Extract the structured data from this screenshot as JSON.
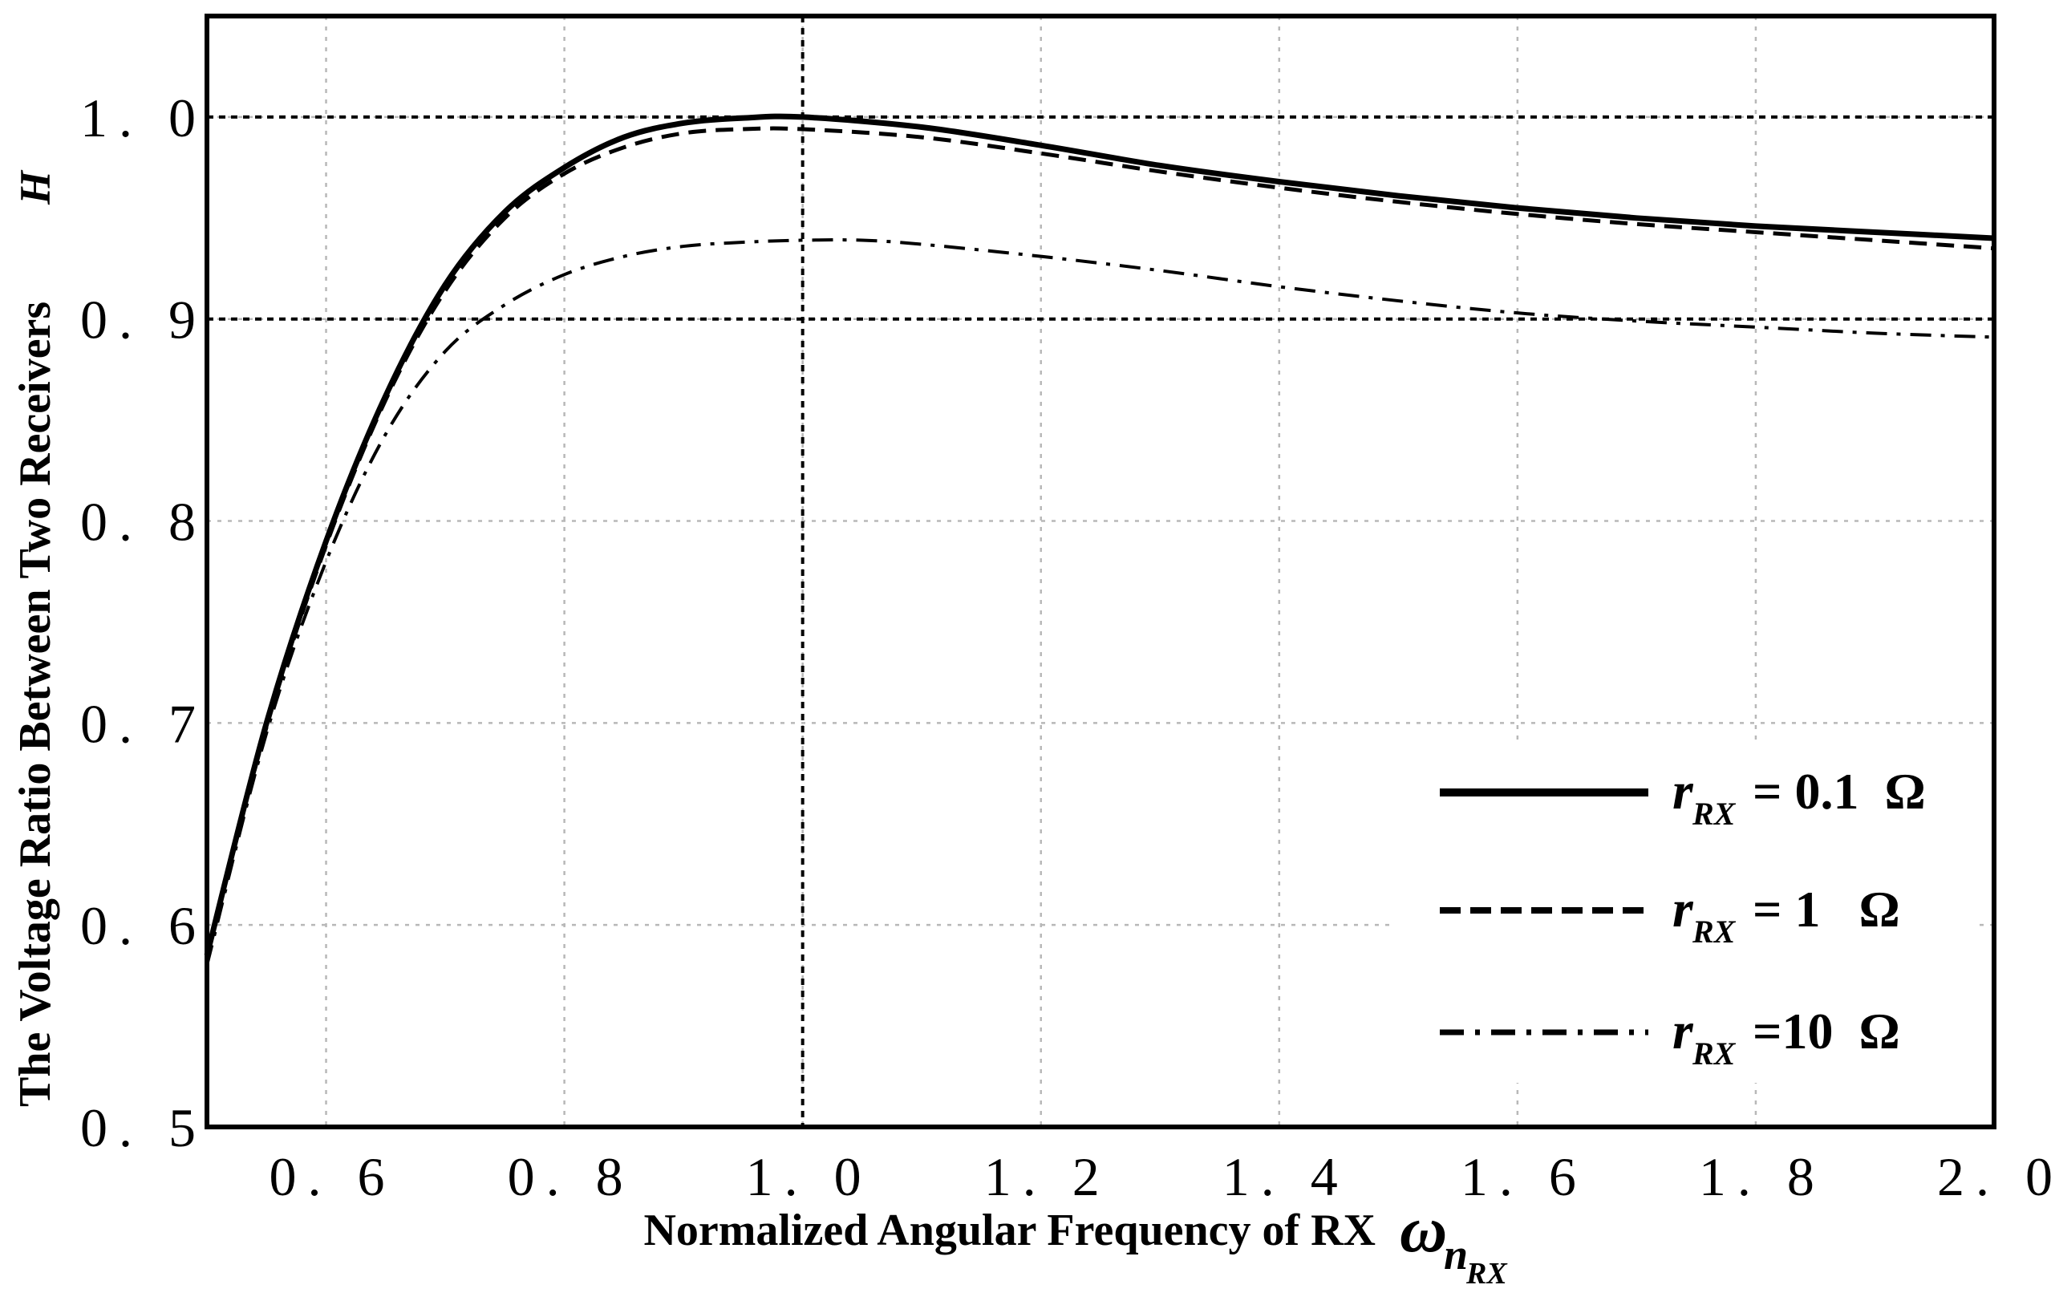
{
  "chart_data": {
    "type": "line",
    "title": "",
    "xlabel": "Normalized Angular Frequency of RX",
    "xlabel_symbol": "ω",
    "xlabel_sub": "n",
    "xlabel_subsub": "RX",
    "ylabel": "The Voltage Ratio Between Two Receivers",
    "ylabel_symbol": "H",
    "xlim": [
      0.5,
      2.0
    ],
    "ylim": [
      0.5,
      1.05
    ],
    "xticks": [
      0.6,
      0.8,
      1.0,
      1.2,
      1.4,
      1.6,
      1.8,
      2.0
    ],
    "xtick_labels": [
      "0. 6",
      "0. 8",
      "1. 0",
      "1. 2",
      "1. 4",
      "1. 6",
      "1. 8",
      "2. 0"
    ],
    "yticks": [
      0.5,
      0.6,
      0.7,
      0.8,
      0.9,
      1.0
    ],
    "ytick_labels": [
      "0. 5",
      "0. 6",
      "0. 7",
      "0. 8",
      "0. 9",
      "1. 0"
    ],
    "grid": true,
    "reference_lines": {
      "horizontal": [
        0.9,
        1.0
      ],
      "vertical": [
        1.0
      ]
    },
    "legend_position": "lower-right",
    "series": [
      {
        "name": "r_RX = 0.1 Ω",
        "legend_symbol": "r",
        "legend_sub": "RX",
        "legend_value": "= 0.1  Ω",
        "style": "solid",
        "x": [
          0.5,
          0.55,
          0.6,
          0.65,
          0.7,
          0.75,
          0.8,
          0.85,
          0.9,
          0.95,
          1.0,
          1.1,
          1.2,
          1.3,
          1.4,
          1.5,
          1.6,
          1.7,
          1.8,
          1.9,
          2.0
        ],
        "y": [
          0.585,
          0.7,
          0.79,
          0.862,
          0.917,
          0.953,
          0.975,
          0.99,
          0.997,
          0.9995,
          1.0,
          0.995,
          0.986,
          0.976,
          0.968,
          0.961,
          0.955,
          0.95,
          0.946,
          0.943,
          0.94
        ]
      },
      {
        "name": "r_RX = 1 Ω",
        "legend_symbol": "r",
        "legend_sub": "RX",
        "legend_value": "= 1   Ω",
        "style": "dashed",
        "x": [
          0.5,
          0.55,
          0.6,
          0.65,
          0.7,
          0.75,
          0.8,
          0.85,
          0.9,
          0.95,
          1.0,
          1.1,
          1.2,
          1.3,
          1.4,
          1.5,
          1.6,
          1.7,
          1.8,
          1.9,
          2.0
        ],
        "y": [
          0.585,
          0.698,
          0.788,
          0.86,
          0.914,
          0.95,
          0.972,
          0.985,
          0.992,
          0.994,
          0.994,
          0.99,
          0.982,
          0.973,
          0.965,
          0.958,
          0.952,
          0.947,
          0.943,
          0.939,
          0.935
        ]
      },
      {
        "name": "r_RX = 10 Ω",
        "legend_symbol": "r",
        "legend_sub": "RX",
        "legend_value": "=10  Ω",
        "style": "dashdot",
        "x": [
          0.5,
          0.55,
          0.6,
          0.65,
          0.7,
          0.75,
          0.8,
          0.85,
          0.9,
          0.95,
          1.0,
          1.05,
          1.1,
          1.2,
          1.3,
          1.4,
          1.5,
          1.6,
          1.7,
          1.8,
          1.9,
          2.0
        ],
        "y": [
          0.58,
          0.695,
          0.78,
          0.843,
          0.884,
          0.907,
          0.922,
          0.931,
          0.936,
          0.938,
          0.939,
          0.939,
          0.937,
          0.931,
          0.924,
          0.916,
          0.909,
          0.903,
          0.899,
          0.896,
          0.893,
          0.891
        ]
      }
    ]
  }
}
